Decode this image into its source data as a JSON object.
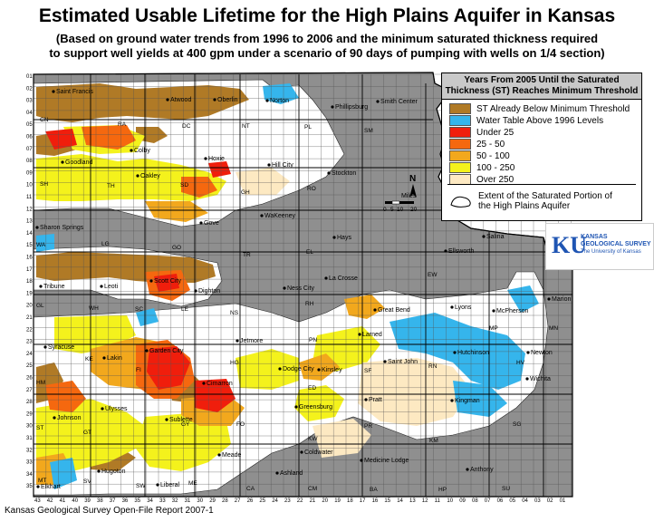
{
  "title": "Estimated Usable Lifetime for the High Plains Aquifer in Kansas",
  "subtitle_line1": "(Based on ground water trends from 1996 to 2006 and the minimum saturated thickness required",
  "subtitle_line2": "to support well yields at 400 gpm under a scenario of 90 days of pumping with wells on 1/4 section)",
  "legend": {
    "title_line1": "Years From 2005 Until the Saturated",
    "title_line2": "Thickness (ST) Reaches Minimum Threshold",
    "items": [
      {
        "label": "ST Already Below Minimum Threshold",
        "color": "#b07a26"
      },
      {
        "label": "Water Table Above 1996 Levels",
        "color": "#35b5ec"
      },
      {
        "label": "Under 25",
        "color": "#f01e0c"
      },
      {
        "label": "25 - 50",
        "color": "#f5680f"
      },
      {
        "label": "50 - 100",
        "color": "#f2a81d"
      },
      {
        "label": "100 - 250",
        "color": "#f4f21c"
      },
      {
        "label": "Over 250",
        "color": "#fde9c2"
      }
    ],
    "extent_label": "Extent of the Saturated Portion of the High Plains Aquifer"
  },
  "colors": {
    "outside_aquifer": "#8f8f8f",
    "inside_extent": "#ffffff"
  },
  "north_arrow": "N",
  "scale": {
    "unit": "Miles",
    "ticks": [
      "0",
      "5",
      "10",
      "20"
    ]
  },
  "logo": {
    "mark": "KU",
    "line1": "KANSAS",
    "line2": "GEOLOGICAL SURVEY",
    "line3": "The University of Kansas"
  },
  "footer": "Kansas Geological Survey Open-File Report 2007-1",
  "towns": [
    "Saint Francis",
    "Atwood",
    "Oberlin",
    "Norton",
    "Phillipsburg",
    "Smith Center",
    "Colby",
    "Hoxie",
    "Goodland",
    "Oakley",
    "Hill City",
    "Stockton",
    "WaKeeney",
    "Sharon Springs",
    "Gove",
    "Hays",
    "Salina",
    "Ellsworth",
    "Tribune",
    "Leoti",
    "Scott City",
    "Dighton",
    "Ness City",
    "La Crosse",
    "Lyons",
    "McPherson",
    "Marion",
    "Great Bend",
    "Larned",
    "Hutchinson",
    "Newton",
    "Syracuse",
    "Lakin",
    "Garden City",
    "Jetmore",
    "Kinsley",
    "Saint John",
    "Dodge City",
    "Cimarron",
    "Johnson",
    "Ulysses",
    "Sublette",
    "Greensburg",
    "Pratt",
    "Kingman",
    "Wichita",
    "Meade",
    "Coldwater",
    "Medicine Lodge",
    "Anthony",
    "Hugoton",
    "Liberal",
    "Ashland",
    "Elkhart"
  ],
  "county_abbr": [
    "CN",
    "RA",
    "DC",
    "NT",
    "PL",
    "SM",
    "SH",
    "TH",
    "SD",
    "GH",
    "RO",
    "WA",
    "LG",
    "GO",
    "TR",
    "EL",
    "GL",
    "WH",
    "SC",
    "LE",
    "NS",
    "RH",
    "EW",
    "MP",
    "MN",
    "KE",
    "FI",
    "HG",
    "PN",
    "ED",
    "SF",
    "RN",
    "HV",
    "HM",
    "GT",
    "GY",
    "FO",
    "KW",
    "PR",
    "KM",
    "SG",
    "ST",
    "SV",
    "SW",
    "ME",
    "CA",
    "CM",
    "BA",
    "HP",
    "SU",
    "MT"
  ],
  "range_numbers": [
    "43",
    "42",
    "41",
    "40",
    "39",
    "38",
    "37",
    "36",
    "35",
    "34",
    "33",
    "32",
    "31",
    "30",
    "29",
    "28",
    "27",
    "26",
    "25",
    "24",
    "23",
    "22",
    "21",
    "20",
    "19",
    "18",
    "17",
    "16",
    "15",
    "14",
    "13",
    "12",
    "11",
    "10",
    "09",
    "08",
    "07",
    "06",
    "05",
    "04",
    "03",
    "02",
    "01"
  ],
  "township_numbers": [
    "01",
    "02",
    "03",
    "04",
    "05",
    "06",
    "07",
    "08",
    "09",
    "10",
    "11",
    "12",
    "13",
    "14",
    "15",
    "16",
    "17",
    "18",
    "19",
    "20",
    "21",
    "22",
    "23",
    "24",
    "25",
    "26",
    "27",
    "28",
    "29",
    "30",
    "31",
    "32",
    "33",
    "34",
    "35"
  ]
}
